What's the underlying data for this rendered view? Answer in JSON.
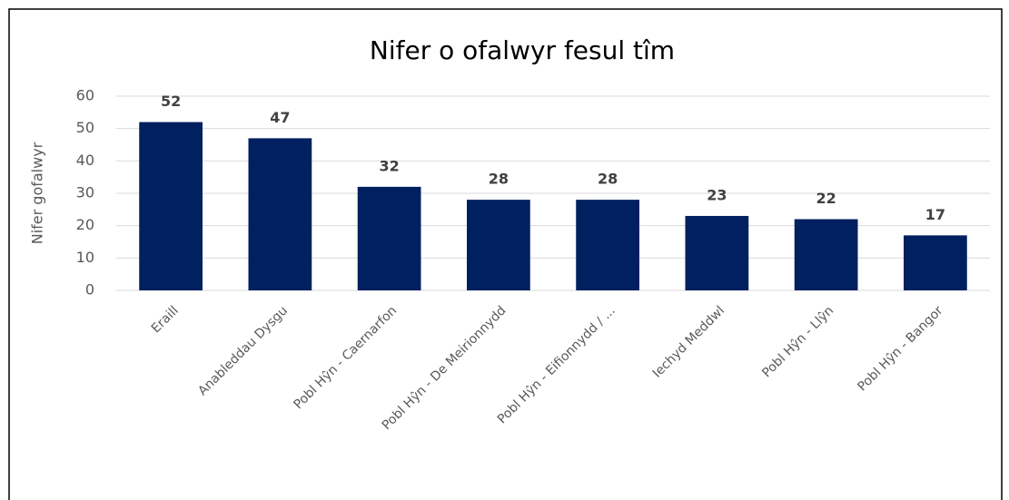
{
  "chart_data": {
    "type": "bar",
    "title": "Nifer o ofalwyr fesul tîm",
    "y_label": "Nifer gofalwyr",
    "categories": [
      "Eraill",
      "Anableddau Dysgu",
      "Pobl Hŷn - Caernarfon",
      "Pobl Hŷn - De Meirionnydd",
      "Pobl Hŷn - Eifionnydd / ...",
      "Iechyd Meddwl",
      "Pobl Hŷn - Llŷn",
      "Pobl Hŷn - Bangor"
    ],
    "values": [
      52,
      47,
      32,
      28,
      28,
      23,
      22,
      17
    ],
    "color": "#002060",
    "ylim": [
      0,
      60
    ],
    "yticks": [
      0,
      10,
      20,
      30,
      40,
      50,
      60
    ],
    "grid": true
  }
}
